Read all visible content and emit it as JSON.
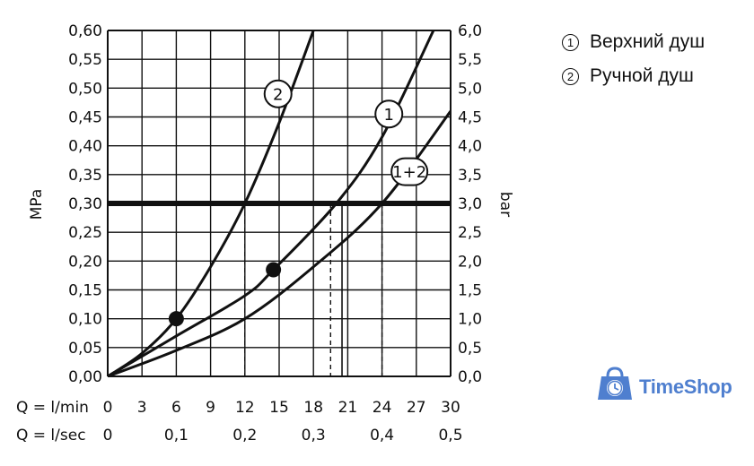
{
  "chart_data": {
    "type": "line",
    "x_primary": {
      "label": "Q = l/min",
      "ticks": [
        "0",
        "3",
        "6",
        "9",
        "12",
        "15",
        "18",
        "21",
        "24",
        "27",
        "30"
      ],
      "range": [
        0,
        30
      ]
    },
    "x_secondary": {
      "label": "Q = l/sec",
      "ticks": [
        "0",
        "0,1",
        "0,2",
        "0,3",
        "0,4",
        "0,5"
      ]
    },
    "y_left": {
      "label": "MPa",
      "ticks": [
        "0,00",
        "0,05",
        "0,10",
        "0,15",
        "0,20",
        "0,25",
        "0,30",
        "0,35",
        "0,40",
        "0,45",
        "0,50",
        "0,55",
        "0,60"
      ],
      "range": [
        0,
        0.6
      ]
    },
    "y_right": {
      "label": "bar",
      "ticks": [
        "0,0",
        "0,5",
        "1,0",
        "1,5",
        "2,0",
        "2,5",
        "3,0",
        "3,5",
        "4,0",
        "4,5",
        "5,0",
        "5,5",
        "6,0"
      ]
    },
    "grid": true,
    "series": [
      {
        "name": "2",
        "x": [
          0,
          3,
          6,
          9,
          12,
          15,
          18
        ],
        "y": [
          0,
          0.04,
          0.1,
          0.19,
          0.3,
          0.44,
          0.6
        ]
      },
      {
        "name": "1",
        "x": [
          0,
          6,
          12,
          14.5,
          20,
          24,
          28.5
        ],
        "y": [
          0,
          0.07,
          0.14,
          0.185,
          0.3,
          0.415,
          0.6
        ]
      },
      {
        "name": "1+2",
        "x": [
          0,
          6,
          12,
          18,
          24,
          30
        ],
        "y": [
          0,
          0.045,
          0.1,
          0.19,
          0.3,
          0.46
        ]
      }
    ],
    "reference_line": {
      "y": 0.3
    },
    "markers": [
      {
        "x": 6,
        "y": 0.1
      },
      {
        "x": 14.5,
        "y": 0.185
      }
    ],
    "guide_lines_x": [
      12,
      19.5,
      24
    ],
    "guide_bar_x": 20.5
  },
  "legend": {
    "items": [
      {
        "num": "1",
        "label": "Верхний душ"
      },
      {
        "num": "2",
        "label": "Ручной душ"
      }
    ]
  },
  "brand": {
    "name": "TimeShop",
    "color": "#4f7fcf"
  }
}
